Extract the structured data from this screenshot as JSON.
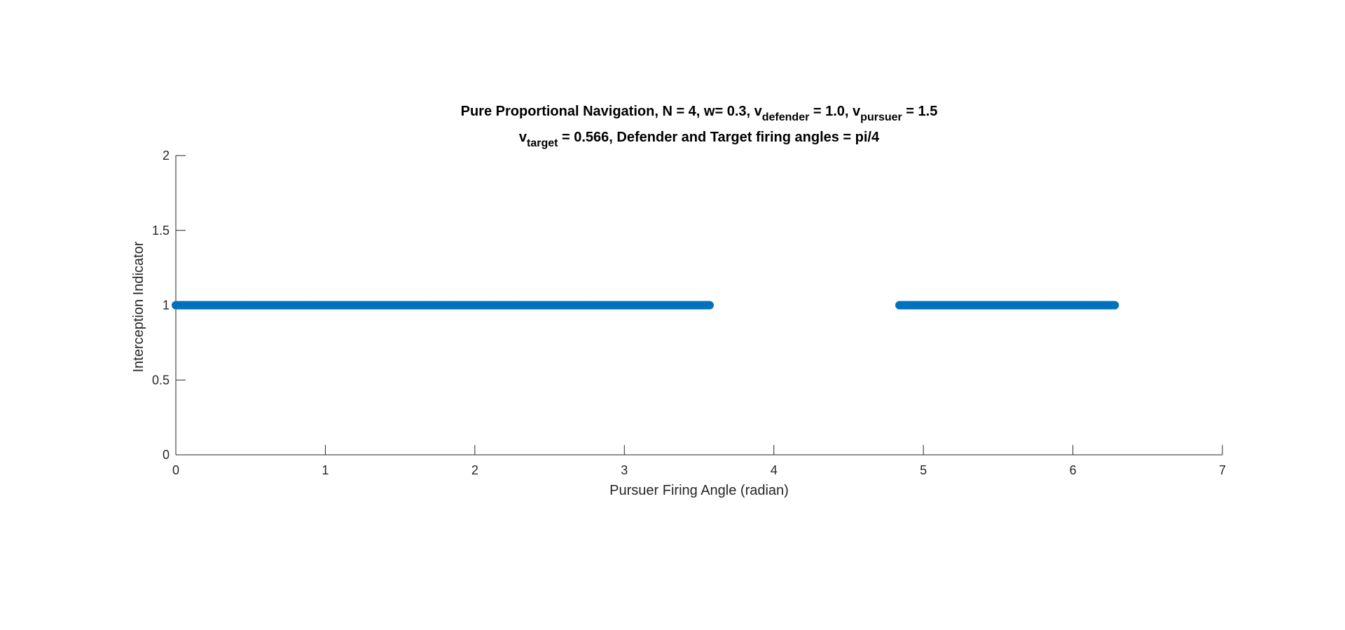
{
  "chart_data": {
    "type": "scatter",
    "title": {
      "line1": {
        "main": "Pure Proportional Navigation, N = 4, w= 0.3, v",
        "sub1": "defender",
        "mid": " = 1.0, v",
        "sub2": "pursuer",
        "end": " = 1.5"
      },
      "line2": {
        "main": "v",
        "sub1": "target",
        "end": " = 0.566, Defender and Target firing angles = pi/4"
      }
    },
    "xlabel": "Pursuer Firing Angle (radian)",
    "ylabel": "Interception Indicator",
    "xlim": [
      0,
      7
    ],
    "ylim": [
      0,
      2
    ],
    "xticks": [
      "0",
      "1",
      "2",
      "3",
      "4",
      "5",
      "6",
      "7"
    ],
    "yticks": [
      "0",
      "0.5",
      "1",
      "1.5",
      "2"
    ],
    "grid": false,
    "series": [
      {
        "color": "#0072BD",
        "marker": "filled-circle",
        "segments": [
          {
            "x_start": 0.0,
            "x_end": 3.57,
            "y": 1
          },
          {
            "x_start": 4.84,
            "x_end": 6.28,
            "y": 1
          }
        ]
      }
    ]
  }
}
